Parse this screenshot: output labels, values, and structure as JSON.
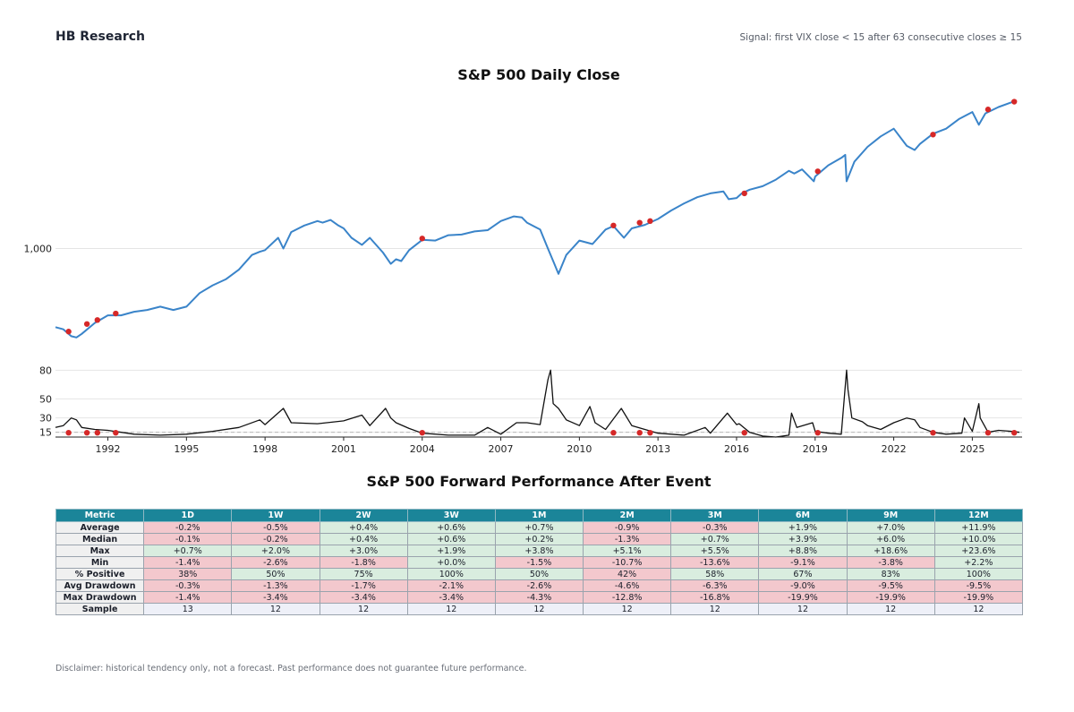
{
  "header": {
    "brand": "HB Research",
    "signal": "Signal: first VIX close < 15 after 63 consecutive closes ≥ 15"
  },
  "chart_data": [
    {
      "type": "line",
      "title": "S&P 500 Daily Close",
      "xlabel": "",
      "ylabel": "",
      "y_scale": "log",
      "y_tick_labels": [
        "1,000"
      ],
      "y_ticks": [
        1000
      ],
      "ylim": [
        270,
        7200
      ],
      "xlim": [
        1990.0,
        2026.9
      ],
      "grid": true,
      "color": "#3a84c9",
      "event_color": "#d62828",
      "x": [
        1990.0,
        1990.3,
        1990.6,
        1990.8,
        1991.0,
        1991.5,
        1992.0,
        1992.5,
        1993.0,
        1993.5,
        1994.0,
        1994.5,
        1995.0,
        1995.5,
        1996.0,
        1996.5,
        1997.0,
        1997.5,
        1997.8,
        1998.0,
        1998.5,
        1998.7,
        1999.0,
        1999.5,
        2000.0,
        2000.2,
        2000.5,
        2000.8,
        2001.0,
        2001.3,
        2001.7,
        2002.0,
        2002.5,
        2002.8,
        2003.0,
        2003.2,
        2003.5,
        2004.0,
        2004.5,
        2005.0,
        2005.5,
        2006.0,
        2006.5,
        2007.0,
        2007.5,
        2007.8,
        2008.0,
        2008.5,
        2008.8,
        2009.0,
        2009.2,
        2009.5,
        2010.0,
        2010.5,
        2011.0,
        2011.3,
        2011.7,
        2012.0,
        2012.5,
        2013.0,
        2013.5,
        2014.0,
        2014.5,
        2015.0,
        2015.5,
        2015.7,
        2016.0,
        2016.2,
        2016.5,
        2017.0,
        2017.5,
        2018.0,
        2018.2,
        2018.5,
        2018.95,
        2019.0,
        2019.5,
        2020.0,
        2020.15,
        2020.2,
        2020.5,
        2021.0,
        2021.5,
        2022.0,
        2022.5,
        2022.8,
        2023.0,
        2023.5,
        2024.0,
        2024.5,
        2025.0,
        2025.25,
        2025.5,
        2026.0,
        2026.5,
        2026.6
      ],
      "values": [
        360,
        350,
        320,
        315,
        330,
        380,
        420,
        420,
        440,
        450,
        470,
        450,
        470,
        560,
        620,
        670,
        760,
        920,
        960,
        980,
        1150,
        1000,
        1240,
        1350,
        1430,
        1400,
        1450,
        1350,
        1300,
        1150,
        1050,
        1150,
        950,
        820,
        870,
        850,
        980,
        1120,
        1110,
        1190,
        1200,
        1250,
        1270,
        1430,
        1520,
        1500,
        1400,
        1280,
        1000,
        850,
        720,
        920,
        1110,
        1060,
        1280,
        1340,
        1150,
        1300,
        1360,
        1470,
        1640,
        1800,
        1950,
        2050,
        2100,
        1900,
        1930,
        2050,
        2150,
        2250,
        2450,
        2750,
        2650,
        2800,
        2400,
        2550,
        2950,
        3250,
        3380,
        2400,
        3100,
        3750,
        4300,
        4750,
        3800,
        3600,
        3900,
        4450,
        4750,
        5400,
        5900,
        5000,
        5800,
        6300,
        6700,
        6800
      ],
      "events_x": [
        1990.5,
        1991.2,
        1991.6,
        1992.3,
        2004.0,
        2011.3,
        2012.3,
        2012.7,
        2016.3,
        2019.1,
        2023.5,
        2025.6,
        2026.6
      ],
      "events_y": [
        340,
        375,
        395,
        430,
        1140,
        1350,
        1400,
        1430,
        2050,
        2730,
        4400,
        6100,
        6750
      ]
    },
    {
      "type": "line",
      "title": "",
      "xlabel": "",
      "ylabel": "",
      "y_ticks": [
        15,
        30,
        50,
        80
      ],
      "ylim": [
        10,
        85
      ],
      "xlim": [
        1990.0,
        2026.9
      ],
      "x_ticks": [
        1992,
        1995,
        1998,
        2001,
        2004,
        2007,
        2010,
        2013,
        2016,
        2019,
        2022,
        2025
      ],
      "grid": true,
      "reference_line": 15,
      "color": "#111111",
      "event_color": "#d62828",
      "x": [
        1990.0,
        1990.3,
        1990.6,
        1990.8,
        1991.0,
        1991.5,
        1992.0,
        1993.0,
        1994.0,
        1995.0,
        1996.0,
        1997.0,
        1997.8,
        1998.0,
        1998.7,
        1999.0,
        2000.0,
        2001.0,
        2001.7,
        2002.0,
        2002.6,
        2002.8,
        2003.0,
        2003.5,
        2004.0,
        2005.0,
        2006.0,
        2006.5,
        2007.0,
        2007.6,
        2008.0,
        2008.5,
        2008.8,
        2008.9,
        2009.0,
        2009.2,
        2009.5,
        2010.0,
        2010.4,
        2010.6,
        2011.0,
        2011.6,
        2012.0,
        2012.5,
        2013.0,
        2014.0,
        2014.8,
        2015.0,
        2015.65,
        2016.0,
        2016.1,
        2016.5,
        2017.0,
        2017.5,
        2018.0,
        2018.1,
        2018.3,
        2018.9,
        2019.0,
        2019.5,
        2020.0,
        2020.2,
        2020.25,
        2020.4,
        2020.8,
        2021.0,
        2021.5,
        2022.0,
        2022.5,
        2022.8,
        2023.0,
        2023.5,
        2024.0,
        2024.6,
        2024.7,
        2025.0,
        2025.25,
        2025.3,
        2025.6,
        2026.0,
        2026.5,
        2026.8
      ],
      "values": [
        20,
        22,
        30,
        28,
        20,
        18,
        17,
        13,
        12,
        13,
        16,
        20,
        28,
        23,
        40,
        25,
        24,
        27,
        33,
        22,
        40,
        30,
        25,
        19,
        14,
        12,
        12,
        20,
        13,
        25,
        25,
        23,
        70,
        80,
        45,
        40,
        28,
        22,
        42,
        25,
        18,
        40,
        22,
        18,
        14,
        12,
        20,
        14,
        35,
        23,
        24,
        15,
        11,
        10,
        12,
        35,
        20,
        25,
        16,
        14,
        13,
        80,
        60,
        30,
        26,
        22,
        18,
        25,
        30,
        28,
        20,
        15,
        13,
        14,
        30,
        16,
        45,
        30,
        15,
        17,
        16,
        15
      ],
      "events_x": [
        1990.5,
        1991.2,
        1991.6,
        1992.3,
        2004.0,
        2011.3,
        2012.3,
        2012.7,
        2016.3,
        2019.1,
        2023.5,
        2025.6,
        2026.6
      ],
      "events_y": [
        14.5,
        14.5,
        14.5,
        14.5,
        14.5,
        14.5,
        14.5,
        14.5,
        14.5,
        14.5,
        14.5,
        14.5,
        14.5
      ]
    },
    {
      "type": "table",
      "title": "S&P 500 Forward Performance After Event",
      "columns": [
        "Metric",
        "1D",
        "1W",
        "2W",
        "3W",
        "1M",
        "2M",
        "3M",
        "6M",
        "9M",
        "12M"
      ],
      "rows": [
        {
          "metric": "Average",
          "values": [
            "-0.2%",
            "-0.5%",
            "+0.4%",
            "+0.6%",
            "+0.7%",
            "-0.9%",
            "-0.3%",
            "+1.9%",
            "+7.0%",
            "+11.9%"
          ],
          "status": [
            "neg",
            "neg",
            "pos",
            "pos",
            "pos",
            "neg",
            "neg",
            "pos",
            "pos",
            "pos"
          ]
        },
        {
          "metric": "Median",
          "values": [
            "-0.1%",
            "-0.2%",
            "+0.4%",
            "+0.6%",
            "+0.2%",
            "-1.3%",
            "+0.7%",
            "+3.9%",
            "+6.0%",
            "+10.0%"
          ],
          "status": [
            "neg",
            "neg",
            "pos",
            "pos",
            "pos",
            "neg",
            "pos",
            "pos",
            "pos",
            "pos"
          ]
        },
        {
          "metric": "Max",
          "values": [
            "+0.7%",
            "+2.0%",
            "+3.0%",
            "+1.9%",
            "+3.8%",
            "+5.1%",
            "+5.5%",
            "+8.8%",
            "+18.6%",
            "+23.6%"
          ],
          "status": [
            "pos",
            "pos",
            "pos",
            "pos",
            "pos",
            "pos",
            "pos",
            "pos",
            "pos",
            "pos"
          ]
        },
        {
          "metric": "Min",
          "values": [
            "-1.4%",
            "-2.6%",
            "-1.8%",
            "+0.0%",
            "-1.5%",
            "-10.7%",
            "-13.6%",
            "-9.1%",
            "-3.8%",
            "+2.2%"
          ],
          "status": [
            "neg",
            "neg",
            "neg",
            "pos",
            "neg",
            "neg",
            "neg",
            "neg",
            "neg",
            "pos"
          ]
        },
        {
          "metric": "% Positive",
          "values": [
            "38%",
            "50%",
            "75%",
            "100%",
            "50%",
            "42%",
            "58%",
            "67%",
            "83%",
            "100%"
          ],
          "status": [
            "neg",
            "pos",
            "pos",
            "pos",
            "pos",
            "neg",
            "pos",
            "pos",
            "pos",
            "pos"
          ]
        },
        {
          "metric": "Avg Drawdown",
          "values": [
            "-0.3%",
            "-1.3%",
            "-1.7%",
            "-2.1%",
            "-2.6%",
            "-4.6%",
            "-6.3%",
            "-9.0%",
            "-9.5%",
            "-9.5%"
          ],
          "status": [
            "neg",
            "neg",
            "neg",
            "neg",
            "neg",
            "neg",
            "neg",
            "neg",
            "neg",
            "neg"
          ]
        },
        {
          "metric": "Max Drawdown",
          "values": [
            "-1.4%",
            "-3.4%",
            "-3.4%",
            "-3.4%",
            "-4.3%",
            "-12.8%",
            "-16.8%",
            "-19.9%",
            "-19.9%",
            "-19.9%"
          ],
          "status": [
            "neg",
            "neg",
            "neg",
            "neg",
            "neg",
            "neg",
            "neg",
            "neg",
            "neg",
            "neg"
          ]
        },
        {
          "metric": "Sample",
          "values": [
            "13",
            "12",
            "12",
            "12",
            "12",
            "12",
            "12",
            "12",
            "12",
            "12"
          ],
          "status": [
            "neu",
            "neu",
            "neu",
            "neu",
            "neu",
            "neu",
            "neu",
            "neu",
            "neu",
            "neu"
          ]
        }
      ]
    }
  ],
  "disclaimer": "Disclaimer: historical tendency only, not a forecast. Past performance does not guarantee future performance."
}
